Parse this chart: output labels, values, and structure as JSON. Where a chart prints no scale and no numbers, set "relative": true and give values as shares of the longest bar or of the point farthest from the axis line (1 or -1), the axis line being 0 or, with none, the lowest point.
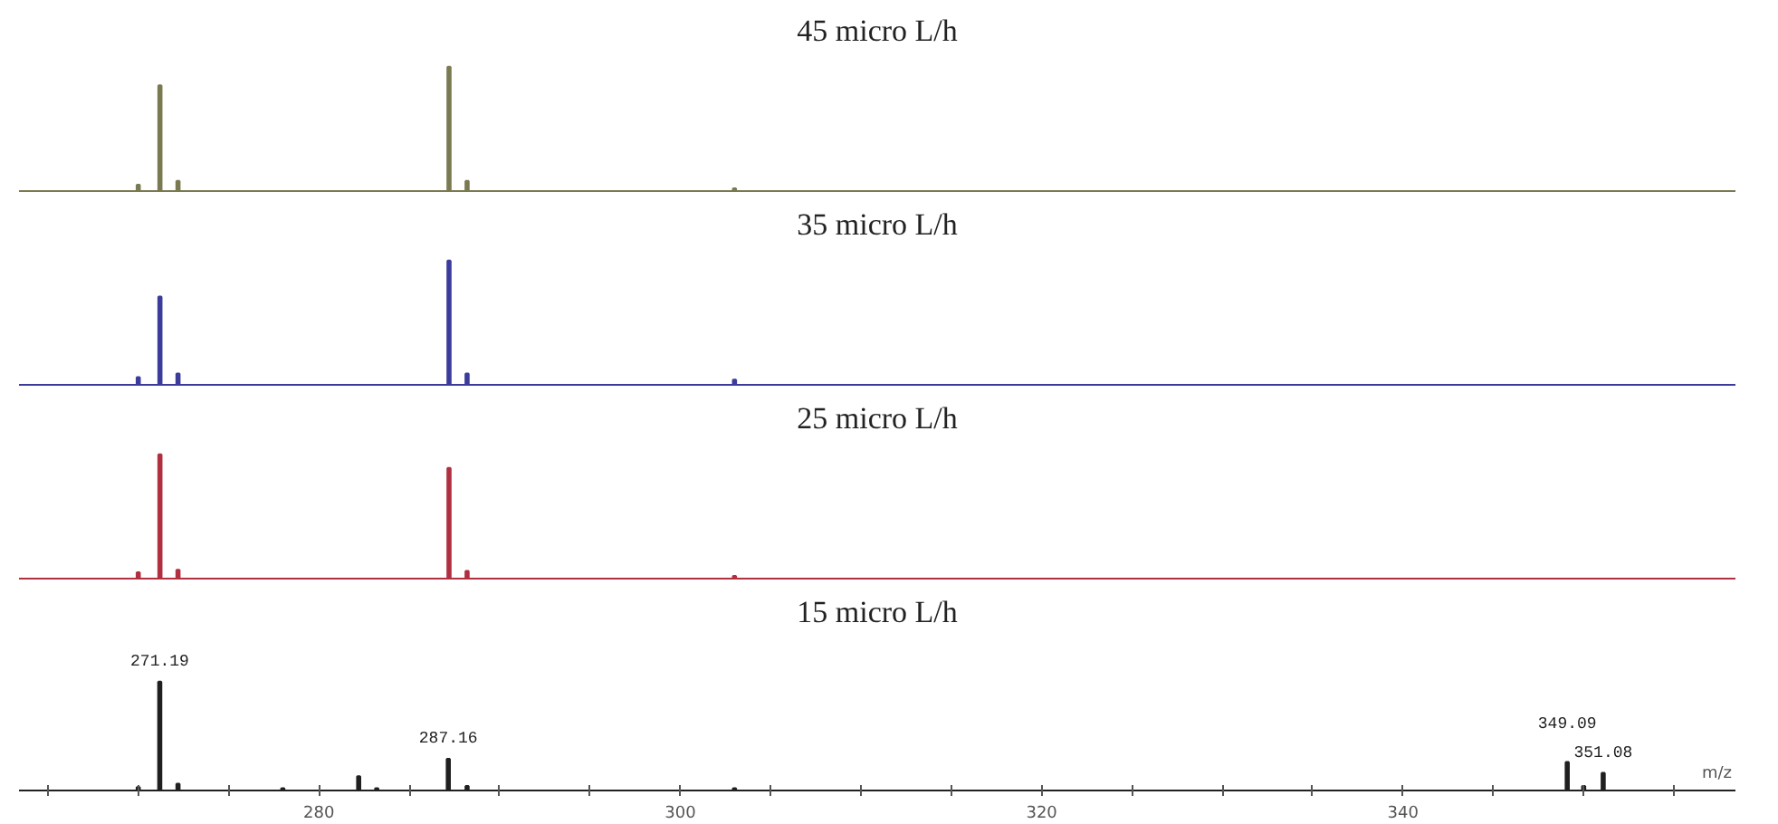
{
  "chart_data": [
    {
      "type": "bar",
      "title": "45 micro L/h",
      "relative": true,
      "xlim": [
        263.4,
        358.4
      ],
      "tick_labels": false,
      "color": "#7a7a52",
      "x": [
        270.0,
        271.2,
        272.2,
        287.2,
        288.2,
        303.0
      ],
      "values": [
        0.05,
        0.85,
        0.08,
        1,
        0.08,
        0.02
      ]
    },
    {
      "type": "bar",
      "title": "35 micro L/h",
      "relative": true,
      "xlim": [
        263.4,
        358.4
      ],
      "tick_labels": false,
      "color": "#3c3c9c",
      "x": [
        270.0,
        271.2,
        272.2,
        287.2,
        288.2,
        303.0
      ],
      "values": [
        0.06,
        0.71,
        0.09,
        1,
        0.09,
        0.04
      ]
    },
    {
      "type": "bar",
      "title": "25 micro L/h",
      "relative": true,
      "xlim": [
        263.4,
        358.4
      ],
      "tick_labels": false,
      "color": "#b03040",
      "x": [
        270.0,
        271.2,
        272.2,
        287.2,
        288.2,
        303.0
      ],
      "values": [
        0.05,
        1,
        0.07,
        0.89,
        0.06,
        0.02
      ]
    },
    {
      "type": "bar",
      "title": "15 micro L/h",
      "relative": true,
      "xlim": [
        263.4,
        358.4
      ],
      "tick_labels": "x",
      "xlabel": "m/z",
      "color": "#202020",
      "xticks": [
        {
          "value": 265,
          "label": null
        },
        {
          "value": 270,
          "label": null
        },
        {
          "value": 275,
          "label": null
        },
        280,
        {
          "value": 285,
          "label": null
        },
        {
          "value": 290,
          "label": null
        },
        {
          "value": 295,
          "label": null
        },
        300,
        {
          "value": 305,
          "label": null
        },
        {
          "value": 310,
          "label": null
        },
        {
          "value": 315,
          "label": null
        },
        320,
        {
          "value": 325,
          "label": null
        },
        {
          "value": 330,
          "label": null
        },
        {
          "value": 335,
          "label": null
        },
        340,
        {
          "value": 345,
          "label": null
        },
        {
          "value": 350,
          "label": null
        },
        {
          "value": 355,
          "label": null
        }
      ],
      "x": [
        270.0,
        271.19,
        272.2,
        278.0,
        282.2,
        283.2,
        287.16,
        288.2,
        303.0,
        349.09,
        350.0,
        351.08
      ],
      "values": [
        0.03,
        1,
        0.06,
        0.02,
        0.13,
        0.02,
        0.29,
        0.04,
        0.02,
        0.26,
        0.04,
        0.16
      ],
      "annotations": [
        {
          "text": "271.19",
          "x": 271.19,
          "y": 1
        },
        {
          "text": "287.16",
          "x": 287.16,
          "y": 0.29
        },
        {
          "text": "349.09",
          "x": 349.09,
          "y": 0.26
        },
        {
          "text": "351.08",
          "x": 351.08,
          "y": 0.16
        }
      ]
    }
  ]
}
